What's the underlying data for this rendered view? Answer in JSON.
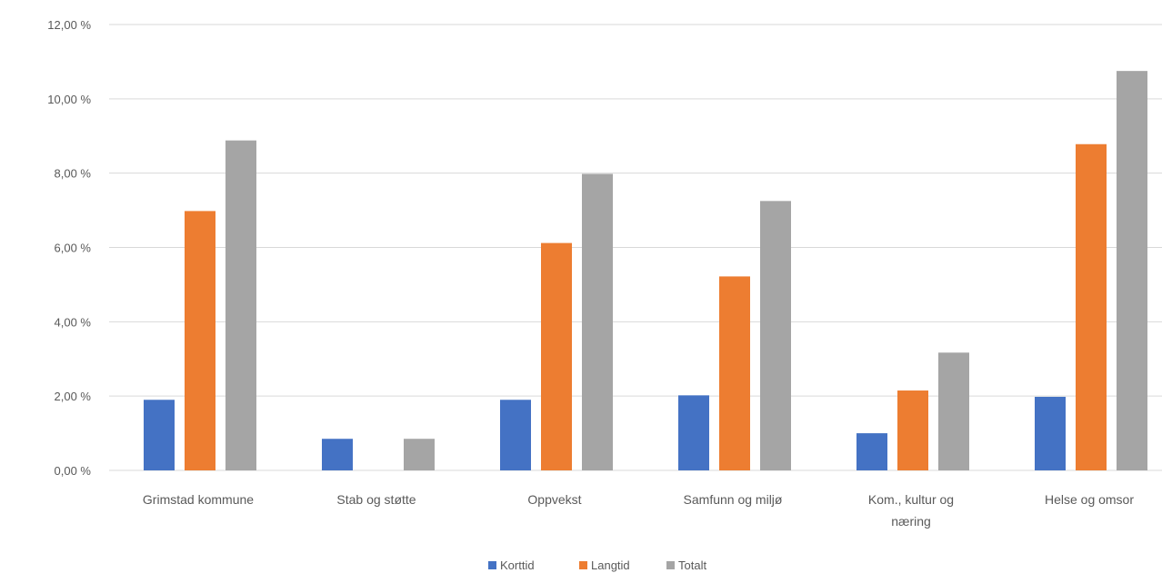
{
  "chart_data": {
    "type": "bar",
    "categories": [
      [
        "Grimstad kommune"
      ],
      [
        "Stab og støtte"
      ],
      [
        "Oppvekst"
      ],
      [
        "Samfunn og miljø"
      ],
      [
        "Kom., kultur og",
        "næring"
      ],
      [
        "Helse og omsor"
      ]
    ],
    "series": [
      {
        "name": "Korttid",
        "values": [
          1.9,
          0.85,
          1.9,
          2.02,
          1.0,
          1.98
        ]
      },
      {
        "name": "Langtid",
        "values": [
          6.98,
          0,
          6.12,
          5.22,
          2.15,
          8.78
        ]
      },
      {
        "name": "Totalt",
        "values": [
          8.88,
          0.85,
          7.98,
          7.25,
          3.17,
          10.75
        ]
      }
    ],
    "ylim": [
      0,
      12
    ],
    "yticks": [
      "0,00 %",
      "2,00 %",
      "4,00 %",
      "6,00 %",
      "8,00 %",
      "10,00 %",
      "12,00 %"
    ],
    "grid": true,
    "legend_position": "bottom-center",
    "colors": {
      "Korttid": "#4472C4",
      "Langtid": "#ED7D31",
      "Totalt": "#A5A5A5",
      "grid": "#D9D9D9"
    }
  }
}
